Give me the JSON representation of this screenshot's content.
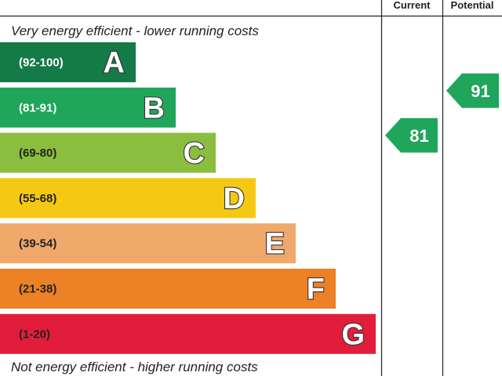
{
  "header": {
    "current_label": "Current",
    "potential_label": "Potential"
  },
  "top_text": "Very energy efficient - lower running costs",
  "bottom_text": "Not energy efficient - higher running costs",
  "chart_data": {
    "type": "bar",
    "bands": [
      {
        "letter": "A",
        "range": "(92-100)",
        "color": "#147a48",
        "range_color": "#ffffff"
      },
      {
        "letter": "B",
        "range": "(81-91)",
        "color": "#1fa65a",
        "range_color": "#ffffff"
      },
      {
        "letter": "C",
        "range": "(69-80)",
        "color": "#8bbd3e",
        "range_color": "#222222"
      },
      {
        "letter": "D",
        "range": "(55-68)",
        "color": "#f5c913",
        "range_color": "#222222"
      },
      {
        "letter": "E",
        "range": "(39-54)",
        "color": "#f0a96b",
        "range_color": "#222222"
      },
      {
        "letter": "F",
        "range": "(21-38)",
        "color": "#ec8126",
        "range_color": "#222222"
      },
      {
        "letter": "G",
        "range": "(1-20)",
        "color": "#e21d3b",
        "range_color": "#222222"
      }
    ],
    "current": {
      "value": 81,
      "color": "#1fa65a"
    },
    "potential": {
      "value": 91,
      "color": "#1fa65a"
    }
  }
}
